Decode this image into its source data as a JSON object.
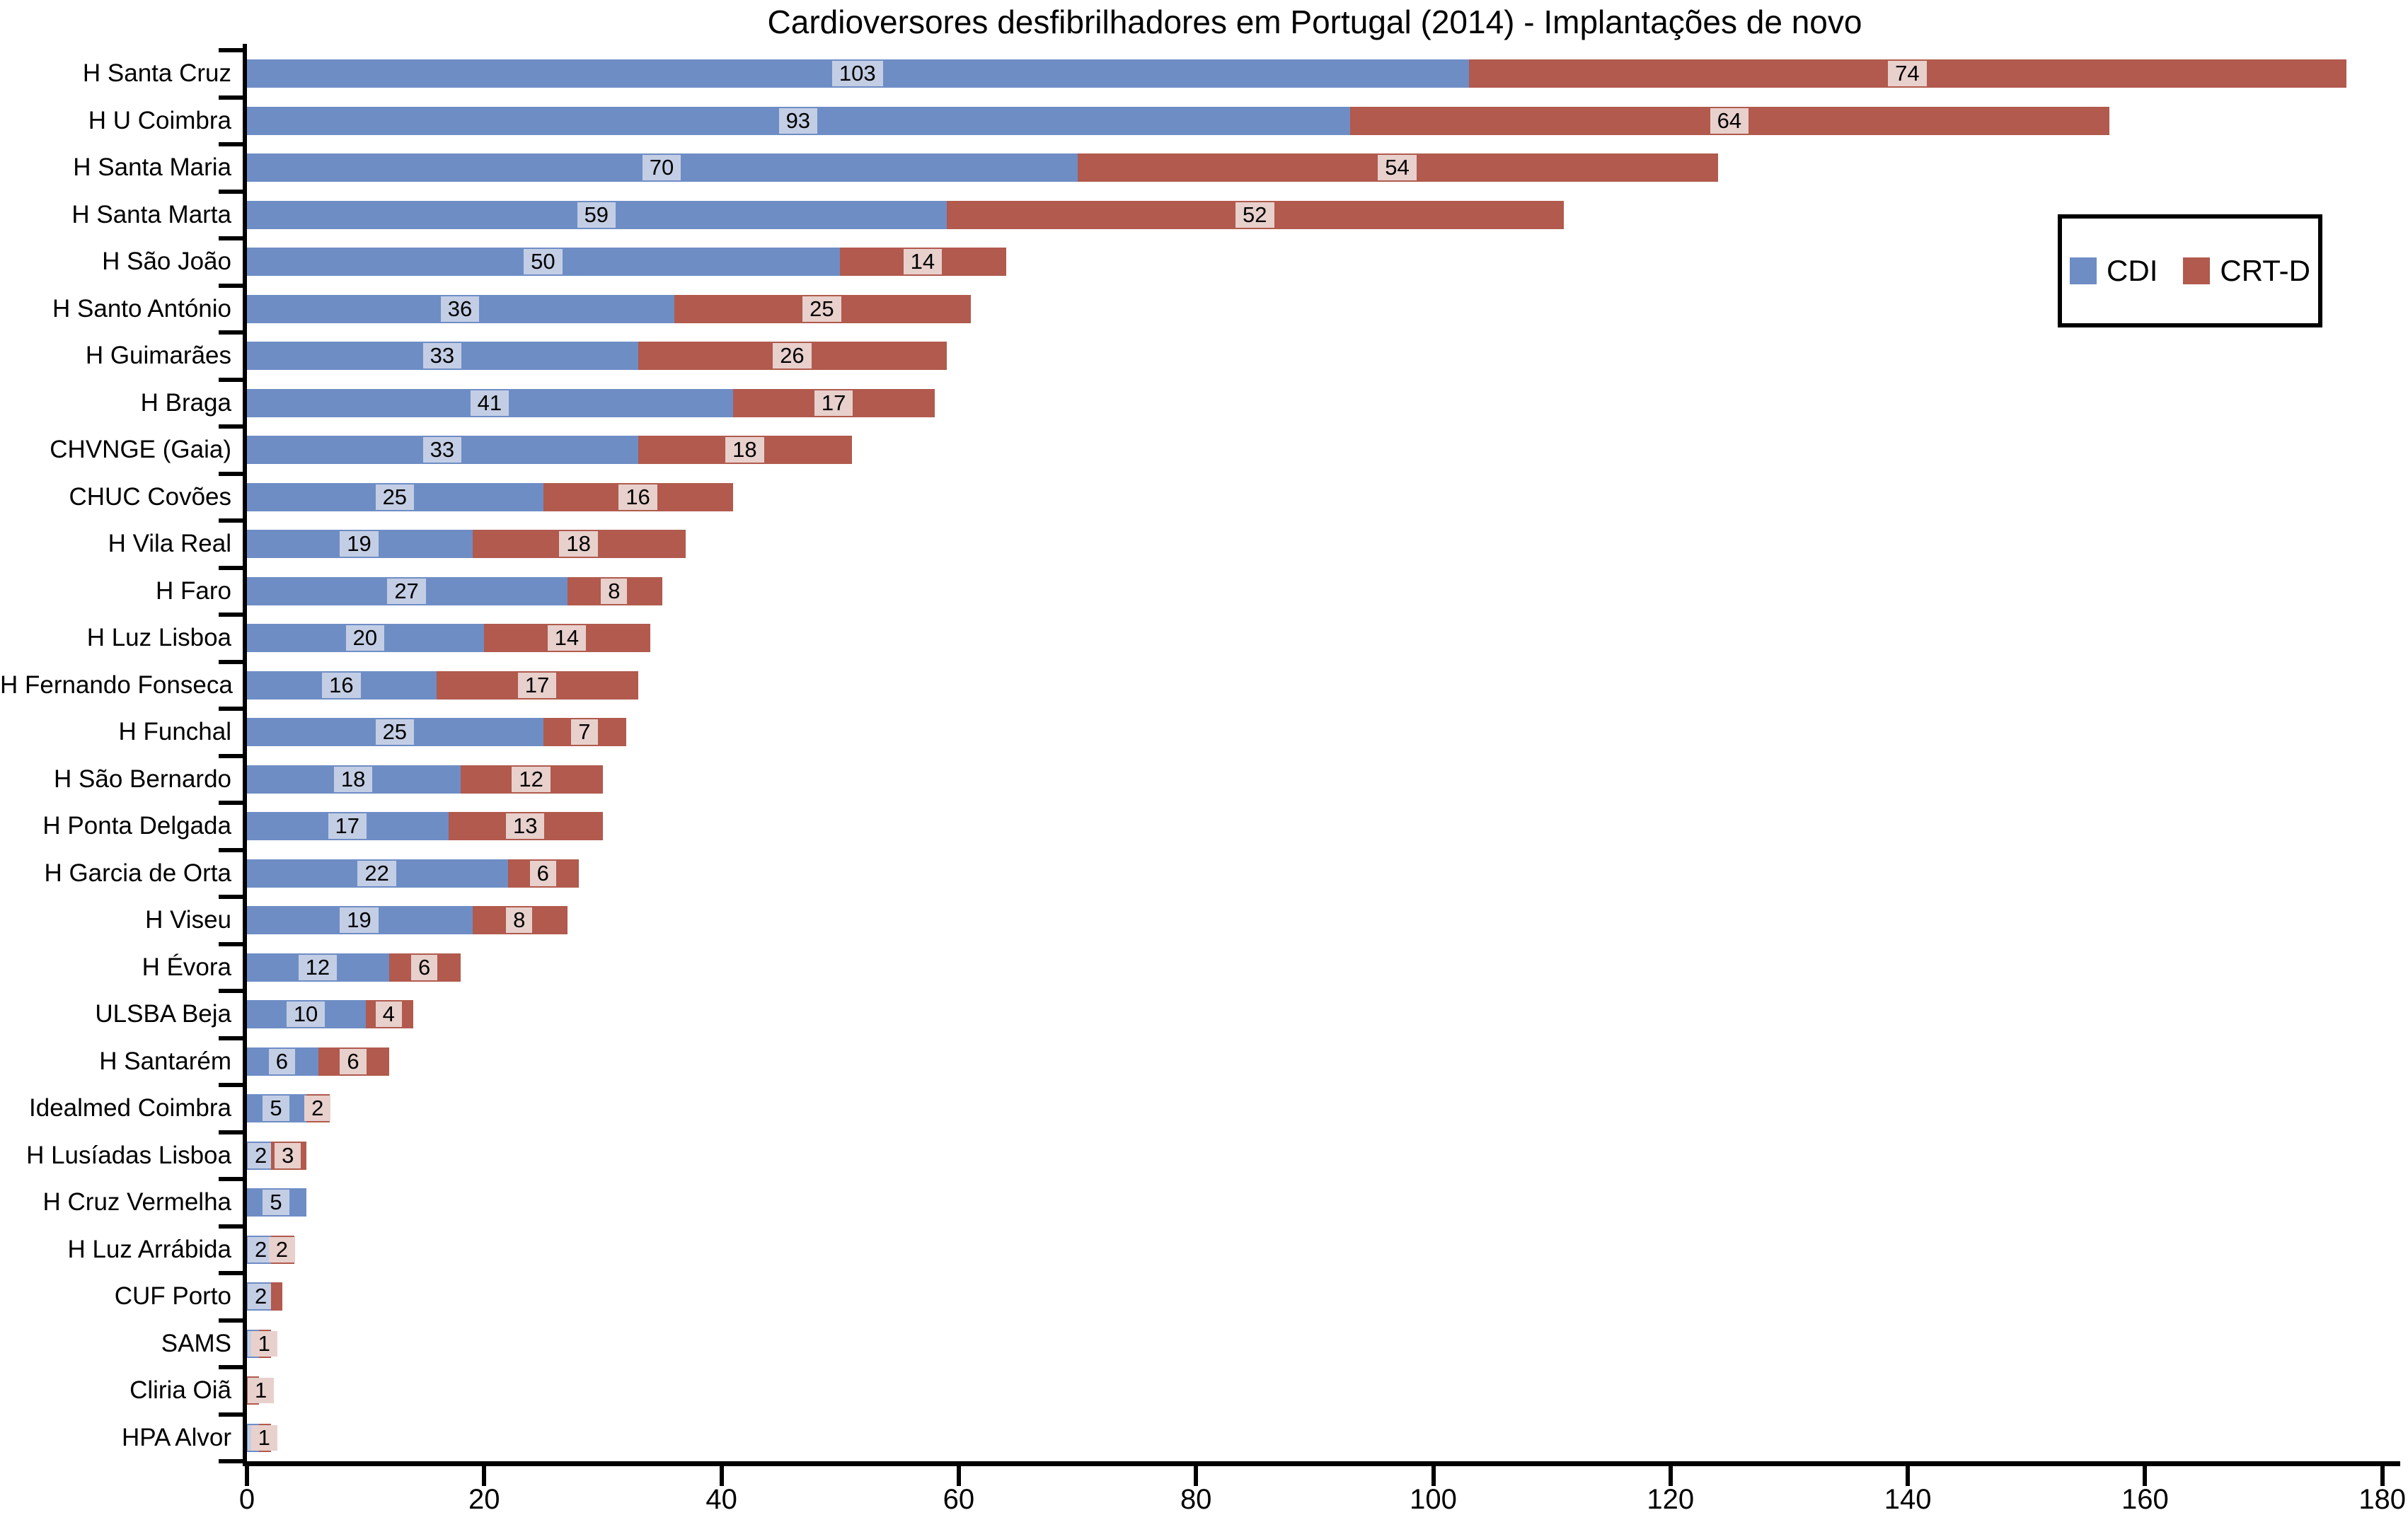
{
  "chart_data": {
    "type": "bar",
    "orientation": "horizontal",
    "stacked": true,
    "title": "Cardioversores desfibrilhadores em Portugal (2014) - Implantações de novo",
    "categories": [
      "H Santa Cruz",
      "H U Coimbra",
      "H Santa Maria",
      "H Santa Marta",
      "H São João",
      "H Santo António",
      "H Guimarães",
      "H Braga",
      "CHVNGE (Gaia)",
      "CHUC Covões",
      "H Vila Real",
      "H Faro",
      "H Luz Lisboa",
      "H Fernando Fonseca",
      "H Funchal",
      "H São Bernardo",
      "H Ponta Delgada",
      "H Garcia de Orta",
      "H Viseu",
      "H Évora",
      "ULSBA Beja",
      "H Santarém",
      "Idealmed Coimbra",
      "H Lusíadas Lisboa",
      "H Cruz Vermelha",
      "H Luz Arrábida",
      "CUF Porto",
      "SAMS",
      "Cliria Oiã",
      "HPA Alvor"
    ],
    "series": [
      {
        "name": "CDI",
        "color": "#6e8dc5",
        "label_bg": "#c3cee5",
        "values": [
          103,
          93,
          70,
          59,
          50,
          36,
          33,
          41,
          33,
          25,
          19,
          27,
          20,
          16,
          25,
          18,
          17,
          22,
          19,
          12,
          10,
          6,
          5,
          2,
          5,
          2,
          2,
          1,
          0,
          1
        ],
        "labels": [
          "103",
          "93",
          "70",
          "59",
          "50",
          "36",
          "33",
          "41",
          "33",
          "25",
          "19",
          "27",
          "20",
          "16",
          "25",
          "18",
          "17",
          "22",
          "19",
          "12",
          "10",
          "6",
          "5",
          "2",
          "5",
          "2",
          "2",
          "1",
          "",
          "1"
        ]
      },
      {
        "name": "CRT-D",
        "color": "#b15a4d",
        "label_bg": "#e8d0cc",
        "values": [
          74,
          64,
          54,
          52,
          14,
          25,
          26,
          17,
          18,
          16,
          18,
          8,
          14,
          17,
          7,
          12,
          13,
          6,
          8,
          6,
          4,
          6,
          2,
          3,
          0,
          2,
          1,
          1,
          1,
          1
        ],
        "labels": [
          "74",
          "64",
          "54",
          "52",
          "14",
          "25",
          "26",
          "17",
          "18",
          "16",
          "18",
          "8",
          "14",
          "17",
          "7",
          "12",
          "13",
          "6",
          "8",
          "6",
          "4",
          "6",
          "2",
          "3",
          "",
          "2",
          "",
          "1",
          "1",
          "1"
        ]
      }
    ],
    "xlim": [
      0,
      180
    ],
    "x_ticks": [
      0,
      20,
      40,
      60,
      80,
      100,
      120,
      140,
      160,
      180
    ],
    "legend": {
      "position": "upper right"
    },
    "grid": false,
    "value_labels": "centered in each segment on tinted background box"
  }
}
